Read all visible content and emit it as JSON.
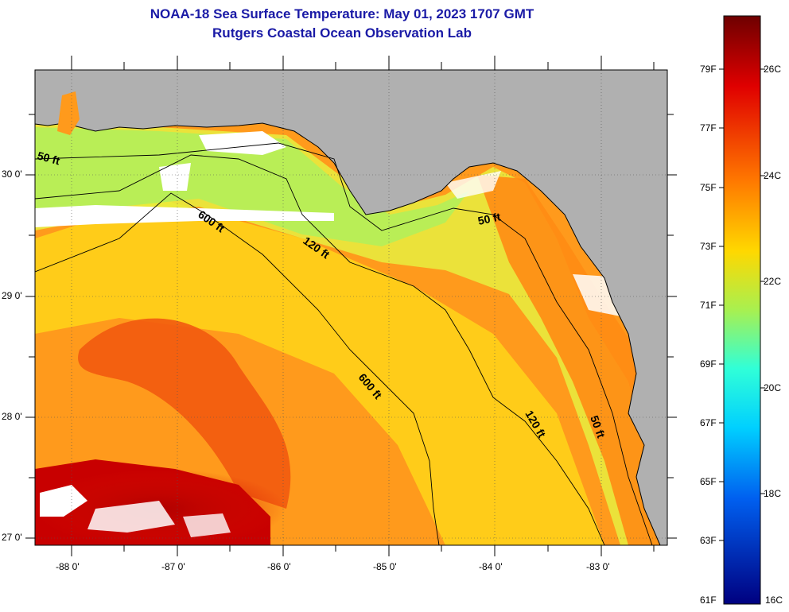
{
  "title": {
    "line1": "NOAA-18 Sea Surface Temperature:  May 01, 2023 1707 GMT",
    "line2": "Rutgers Coastal Ocean Observation Lab"
  },
  "axes": {
    "lon_labels": [
      "-88 0'",
      "-87 0'",
      "-86 0'",
      "-85 0'",
      "-84 0'",
      "-83 0'"
    ],
    "lat_labels": [
      "30 0'",
      "29 0'",
      "28 0'",
      "27 0'"
    ]
  },
  "isobaths": [
    "50 ft",
    "600 ft",
    "120 ft",
    "50 ft",
    "600 ft",
    "120 ft",
    "50 ft"
  ],
  "colorbar": {
    "fahrenheit": [
      "79F",
      "77F",
      "75F",
      "73F",
      "71F",
      "69F",
      "67F",
      "65F",
      "63F",
      "61F"
    ],
    "celsius": [
      "26C",
      "24C",
      "22C",
      "20C",
      "18C",
      "16C"
    ],
    "colors": [
      "#7a0000",
      "#e60000",
      "#ff6a00",
      "#ffd000",
      "#c8ff30",
      "#40ffb0",
      "#00e8ff",
      "#0080ff",
      "#0020c0",
      "#00007a"
    ]
  },
  "colors": {
    "land": "#b0b0b0",
    "cloud": "#ffffff",
    "title": "#1a1aa6"
  }
}
